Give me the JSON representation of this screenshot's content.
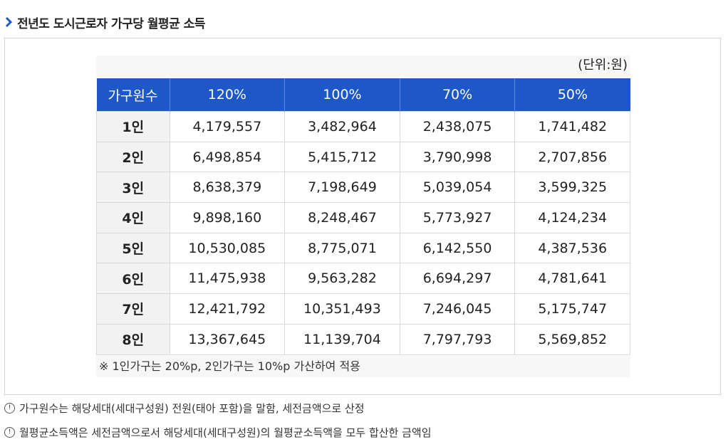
{
  "section_title": "전년도 도시근로자 가구당 월평균 소득",
  "unit_label": "(단위:원)",
  "table": {
    "headers": [
      "가구원수",
      "120%",
      "100%",
      "70%",
      "50%"
    ],
    "rows": [
      {
        "label": "1인",
        "values": [
          "4,179,557",
          "3,482,964",
          "2,438,075",
          "1,741,482"
        ]
      },
      {
        "label": "2인",
        "values": [
          "6,498,854",
          "5,415,712",
          "3,790,998",
          "2,707,856"
        ]
      },
      {
        "label": "3인",
        "values": [
          "8,638,379",
          "7,198,649",
          "5,039,054",
          "3,599,325"
        ]
      },
      {
        "label": "4인",
        "values": [
          "9,898,160",
          "8,248,467",
          "5,773,927",
          "4,124,234"
        ]
      },
      {
        "label": "5인",
        "values": [
          "10,530,085",
          "8,775,071",
          "6,142,550",
          "4,387,536"
        ]
      },
      {
        "label": "6인",
        "values": [
          "11,475,938",
          "9,563,282",
          "6,694,297",
          "4,781,641"
        ]
      },
      {
        "label": "7인",
        "values": [
          "12,421,792",
          "10,351,493",
          "7,246,045",
          "5,175,747"
        ]
      },
      {
        "label": "8인",
        "values": [
          "13,367,645",
          "11,139,704",
          "7,797,793",
          "5,569,852"
        ]
      }
    ]
  },
  "table_note": "※ 1인가구는 20%p, 2인가구는 10%p 가산하여 적용",
  "info_notes": [
    "가구원수는 해당세대(세대구성원) 전원(태아 포함)을 말함, 세전금액으로 산정",
    "월평균소득액은 세전금액으로서 해당세대(세대구성원)의 월평균소득액을 모두 합산한 금액임"
  ],
  "info_icon_glyph": "!",
  "colors": {
    "header_bg": "#1e57c8",
    "chevron": "#1e57c8",
    "rowhead_bg": "#f2f2f2"
  }
}
